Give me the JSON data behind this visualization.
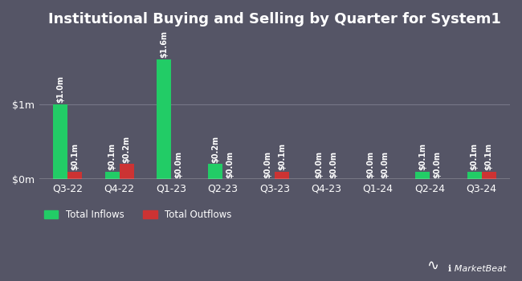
{
  "title": "Institutional Buying and Selling by Quarter for System1",
  "background_color": "#555566",
  "plot_bg_color": "#555566",
  "quarters": [
    "Q3-22",
    "Q4-22",
    "Q1-23",
    "Q2-23",
    "Q3-23",
    "Q4-23",
    "Q1-24",
    "Q2-24",
    "Q3-24"
  ],
  "inflows": [
    1.0,
    0.1,
    1.6,
    0.2,
    0.0,
    0.0,
    0.0,
    0.1,
    0.1
  ],
  "outflows": [
    0.1,
    0.2,
    0.0,
    0.0,
    0.1,
    0.0,
    0.0,
    0.0,
    0.1
  ],
  "inflow_labels": [
    "$1.0m",
    "$0.1m",
    "$1.6m",
    "$0.2m",
    "$0.0m",
    "$0.0m",
    "$0.0m",
    "$0.1m",
    "$0.1m"
  ],
  "outflow_labels": [
    "$0.1m",
    "$0.2m",
    "$0.0m",
    "$0.0m",
    "$0.1m",
    "$0.0m",
    "$0.0m",
    "$0.0m",
    "$0.1m"
  ],
  "inflow_color": "#22cc66",
  "outflow_color": "#cc3333",
  "bar_width": 0.28,
  "ylim": [
    0,
    1.9
  ],
  "yticks": [
    0,
    1.0
  ],
  "ytick_labels": [
    "$0m",
    "$1m"
  ],
  "text_color": "#ffffff",
  "grid_color": "#777788",
  "legend_labels": [
    "Total Inflows",
    "Total Outflows"
  ],
  "title_fontsize": 13,
  "axis_fontsize": 9,
  "label_fontsize": 7
}
